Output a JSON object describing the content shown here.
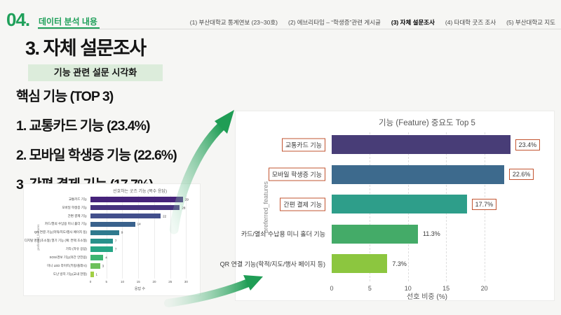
{
  "slide": {
    "page_number": "04.",
    "section_title": "데이터 분석 내용",
    "nav": [
      {
        "label": "(1) 부산대학교 통계연보 (23~30호)",
        "active": false
      },
      {
        "label": "(2) 에브리타임 – “학생증”관련 게시글",
        "active": false
      },
      {
        "label": "(3) 자체 설문조사",
        "active": true
      },
      {
        "label": "(4) 타대학 굿즈 조사",
        "active": false
      },
      {
        "label": "(5) 부산대학교 지도",
        "active": false
      }
    ],
    "heading": "3. 자체 설문조사",
    "badge": "기능 관련 설문 시각화",
    "summary": {
      "title": "핵심 기능 (TOP 3)",
      "items": [
        "1. 교통카드 기능 (23.4%)",
        "2. 모바일 학생증 기능 (22.6%)",
        "3. 간편 결제 기능 (17.7%)"
      ]
    },
    "colors": {
      "accent_green": "#1fa05a",
      "badge_bg": "#dcecdb",
      "highlight_box": "#c25430"
    }
  },
  "chart_data": [
    {
      "type": "bar",
      "orientation": "horizontal",
      "title": "기능 (Feature) 중요도 Top 5",
      "categories": [
        "교통카드 기능",
        "모바일 학생증 기능",
        "간편 결제 기능",
        "카드/열쇠 수납용 미니 홀더 기능",
        "QR 연결 기능(학적/지도/행사 페이지 등)"
      ],
      "values": [
        23.4,
        22.6,
        17.7,
        11.3,
        7.3
      ],
      "value_labels": [
        "23.4%",
        "22.6%",
        "17.7%",
        "11.3%",
        "7.3%"
      ],
      "highlighted": [
        true,
        true,
        true,
        false,
        false
      ],
      "bar_colors": [
        "#483d77",
        "#3d6a8d",
        "#2e9e8a",
        "#44ab68",
        "#8cc63f"
      ],
      "xlabel": "선호 비중 (%)",
      "ylabel": "preferred_features",
      "xticks": [
        0,
        5,
        10,
        15,
        20
      ],
      "xlim": [
        0,
        25
      ],
      "grid": "dashed-vertical",
      "legend": "none"
    },
    {
      "type": "bar",
      "orientation": "horizontal",
      "title": "선호하는 굿즈 기능 (복수 응답)",
      "categories": [
        "교통카드 기능",
        "모바일 학생증 기능",
        "간편 결제 기능",
        "카드/열쇠 수납용 미니 홀더 기능",
        "QR 연결 기능(학적/지도/행사 페이지 등)",
        "디지털 명함(초소형) 열기 기능 (예: 컨택 초소형)",
        "기타 (자유 응답)",
        "SOS/경보 기능(야간 안전용)",
        "미니 LED 라이트(키링/플래시)",
        "도난 방지 기능(교내 한정)"
      ],
      "values": [
        29,
        28,
        22,
        14,
        9,
        7,
        7,
        4,
        3,
        1
      ],
      "bar_colors": [
        "#46237a",
        "#46327e",
        "#424f8c",
        "#39618c",
        "#2f7a8e",
        "#27918b",
        "#25a585",
        "#3db572",
        "#6cc05b",
        "#a2cf45"
      ],
      "xlabel": "응답 수",
      "ylabel": "preferred_features",
      "xticks": [
        0,
        5,
        10,
        15,
        20,
        25,
        30
      ],
      "xlim": [
        0,
        31
      ],
      "grid": "solid-vertical",
      "legend": "none"
    }
  ]
}
